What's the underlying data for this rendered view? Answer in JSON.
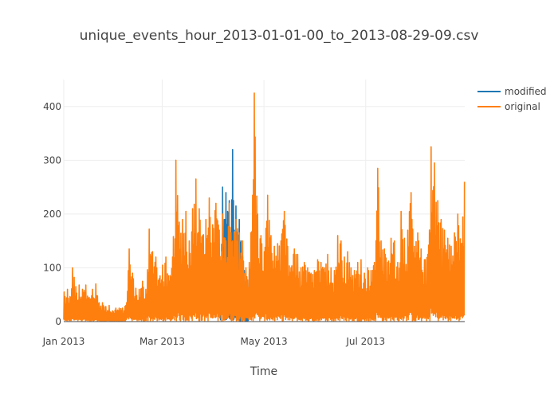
{
  "chart_data": {
    "type": "line",
    "title": "unique_events_hour_2013-01-01-00_to_2013-08-29-09.csv",
    "xlabel": "Time",
    "ylabel": "",
    "x_range": [
      "2013-01-01",
      "2013-08-29"
    ],
    "ylim": [
      0,
      450
    ],
    "y_ticks": [
      0,
      100,
      200,
      300,
      400
    ],
    "x_ticks": [
      {
        "label": "Jan 2013",
        "date": "2013-01-01"
      },
      {
        "label": "Mar 2013",
        "date": "2013-03-01"
      },
      {
        "label": "May 2013",
        "date": "2013-05-01"
      },
      {
        "label": "Jul 2013",
        "date": "2013-07-01"
      }
    ],
    "grid": true,
    "legend_position": "top-right",
    "series": [
      {
        "name": "modified",
        "color": "#1f77b4",
        "points": [
          [
            "2013-04-05",
            95
          ],
          [
            "2013-04-06",
            250
          ],
          [
            "2013-04-07",
            190
          ],
          [
            "2013-04-08",
            240
          ],
          [
            "2013-04-09",
            205
          ],
          [
            "2013-04-10",
            225
          ],
          [
            "2013-04-11",
            150
          ],
          [
            "2013-04-12",
            320
          ],
          [
            "2013-04-13",
            170
          ],
          [
            "2013-04-14",
            215
          ],
          [
            "2013-04-15",
            160
          ],
          [
            "2013-04-16",
            190
          ],
          [
            "2013-04-17",
            150
          ],
          [
            "2013-04-18",
            120
          ],
          [
            "2013-04-19",
            95
          ],
          [
            "2013-04-20",
            75
          ],
          [
            "2013-04-21",
            60
          ],
          [
            "2013-04-22",
            90
          ]
        ]
      },
      {
        "name": "original",
        "color": "#ff7f0e",
        "points": [
          [
            "2013-01-01",
            55
          ],
          [
            "2013-01-03",
            60
          ],
          [
            "2013-01-05",
            45
          ],
          [
            "2013-01-06",
            100
          ],
          [
            "2013-01-08",
            65
          ],
          [
            "2013-01-10",
            68
          ],
          [
            "2013-01-12",
            60
          ],
          [
            "2013-01-14",
            68
          ],
          [
            "2013-01-16",
            45
          ],
          [
            "2013-01-18",
            60
          ],
          [
            "2013-01-20",
            70
          ],
          [
            "2013-01-22",
            35
          ],
          [
            "2013-01-24",
            35
          ],
          [
            "2013-01-26",
            28
          ],
          [
            "2013-01-28",
            30
          ],
          [
            "2013-01-30",
            20
          ],
          [
            "2013-02-01",
            25
          ],
          [
            "2013-02-03",
            25
          ],
          [
            "2013-02-05",
            25
          ],
          [
            "2013-02-07",
            30
          ],
          [
            "2013-02-09",
            135
          ],
          [
            "2013-02-11",
            90
          ],
          [
            "2013-02-13",
            62
          ],
          [
            "2013-02-15",
            60
          ],
          [
            "2013-02-17",
            75
          ],
          [
            "2013-02-19",
            60
          ],
          [
            "2013-02-21",
            172
          ],
          [
            "2013-02-23",
            130
          ],
          [
            "2013-02-25",
            120
          ],
          [
            "2013-02-27",
            80
          ],
          [
            "2013-03-01",
            105
          ],
          [
            "2013-03-03",
            120
          ],
          [
            "2013-03-05",
            75
          ],
          [
            "2013-03-07",
            120
          ],
          [
            "2013-03-09",
            300
          ],
          [
            "2013-03-11",
            185
          ],
          [
            "2013-03-13",
            190
          ],
          [
            "2013-03-15",
            205
          ],
          [
            "2013-03-17",
            150
          ],
          [
            "2013-03-19",
            210
          ],
          [
            "2013-03-21",
            265
          ],
          [
            "2013-03-23",
            210
          ],
          [
            "2013-03-25",
            160
          ],
          [
            "2013-03-27",
            190
          ],
          [
            "2013-03-29",
            230
          ],
          [
            "2013-03-31",
            180
          ],
          [
            "2013-04-02",
            220
          ],
          [
            "2013-04-04",
            170
          ],
          [
            "2013-04-06",
            200
          ],
          [
            "2013-04-08",
            150
          ],
          [
            "2013-04-10",
            220
          ],
          [
            "2013-04-12",
            150
          ],
          [
            "2013-04-14",
            190
          ],
          [
            "2013-04-16",
            165
          ],
          [
            "2013-04-18",
            150
          ],
          [
            "2013-04-20",
            100
          ],
          [
            "2013-04-22",
            110
          ],
          [
            "2013-04-24",
            235
          ],
          [
            "2013-04-25",
            425
          ],
          [
            "2013-04-27",
            200
          ],
          [
            "2013-04-29",
            160
          ],
          [
            "2013-05-01",
            130
          ],
          [
            "2013-05-03",
            235
          ],
          [
            "2013-05-05",
            160
          ],
          [
            "2013-05-07",
            140
          ],
          [
            "2013-05-09",
            145
          ],
          [
            "2013-05-11",
            150
          ],
          [
            "2013-05-13",
            205
          ],
          [
            "2013-05-15",
            140
          ],
          [
            "2013-05-17",
            100
          ],
          [
            "2013-05-19",
            135
          ],
          [
            "2013-05-21",
            125
          ],
          [
            "2013-05-23",
            100
          ],
          [
            "2013-05-25",
            110
          ],
          [
            "2013-05-27",
            100
          ],
          [
            "2013-05-29",
            90
          ],
          [
            "2013-05-31",
            95
          ],
          [
            "2013-06-02",
            115
          ],
          [
            "2013-06-04",
            110
          ],
          [
            "2013-06-06",
            100
          ],
          [
            "2013-06-08",
            125
          ],
          [
            "2013-06-10",
            100
          ],
          [
            "2013-06-12",
            95
          ],
          [
            "2013-06-14",
            160
          ],
          [
            "2013-06-16",
            150
          ],
          [
            "2013-06-18",
            120
          ],
          [
            "2013-06-20",
            130
          ],
          [
            "2013-06-22",
            100
          ],
          [
            "2013-06-24",
            95
          ],
          [
            "2013-06-26",
            110
          ],
          [
            "2013-06-28",
            115
          ],
          [
            "2013-06-30",
            90
          ],
          [
            "2013-07-02",
            100
          ],
          [
            "2013-07-04",
            95
          ],
          [
            "2013-07-06",
            110
          ],
          [
            "2013-07-08",
            285
          ],
          [
            "2013-07-10",
            150
          ],
          [
            "2013-07-12",
            135
          ],
          [
            "2013-07-14",
            110
          ],
          [
            "2013-07-16",
            155
          ],
          [
            "2013-07-18",
            150
          ],
          [
            "2013-07-20",
            110
          ],
          [
            "2013-07-22",
            205
          ],
          [
            "2013-07-24",
            155
          ],
          [
            "2013-07-26",
            170
          ],
          [
            "2013-07-28",
            240
          ],
          [
            "2013-07-30",
            140
          ],
          [
            "2013-08-01",
            165
          ],
          [
            "2013-08-03",
            135
          ],
          [
            "2013-08-05",
            115
          ],
          [
            "2013-08-07",
            125
          ],
          [
            "2013-08-09",
            325
          ],
          [
            "2013-08-11",
            295
          ],
          [
            "2013-08-13",
            225
          ],
          [
            "2013-08-15",
            190
          ],
          [
            "2013-08-17",
            170
          ],
          [
            "2013-08-19",
            155
          ],
          [
            "2013-08-21",
            140
          ],
          [
            "2013-08-23",
            165
          ],
          [
            "2013-08-25",
            200
          ],
          [
            "2013-08-27",
            145
          ],
          [
            "2013-08-29",
            260
          ]
        ]
      }
    ]
  }
}
